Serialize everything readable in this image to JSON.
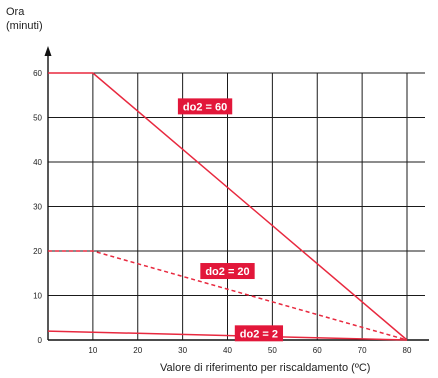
{
  "chart_data": {
    "type": "line",
    "ylabel_line1": "Ora",
    "ylabel_line2": "(minuti)",
    "xlabel": "Valore di riferimento per riscaldamento (ºC)",
    "xlim": [
      0,
      80
    ],
    "ylim": [
      0,
      60
    ],
    "x_ticks": [
      10,
      20,
      30,
      40,
      50,
      60,
      70,
      80
    ],
    "y_ticks": [
      0,
      10,
      20,
      30,
      40,
      50,
      60
    ],
    "grid": true,
    "series": [
      {
        "name": "do2 = 60",
        "style": "solid",
        "x": [
          0,
          10,
          80
        ],
        "y": [
          60,
          60,
          0
        ],
        "label_x": 35,
        "label_y": 52.5
      },
      {
        "name": "do2 = 20",
        "style": "dashed",
        "x": [
          0,
          10,
          80
        ],
        "y": [
          20,
          20,
          0
        ],
        "label_x": 40,
        "label_y": 15.5
      },
      {
        "name": "do2 = 2",
        "style": "solid",
        "x": [
          0,
          80
        ],
        "y": [
          2,
          0
        ],
        "label_x": 47,
        "label_y": 1.5
      }
    ],
    "colors": {
      "line": "#e8293f",
      "label_bg": "#e2173a",
      "label_text": "#ffffff",
      "axis": "#111111"
    }
  }
}
